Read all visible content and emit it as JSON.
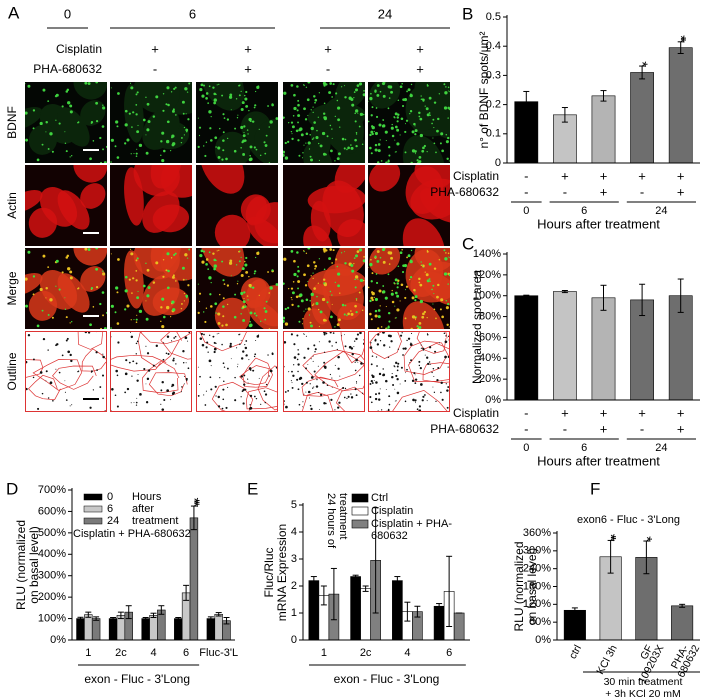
{
  "panel_a": {
    "letter": "A",
    "times": [
      "0",
      "6",
      "24"
    ],
    "conditions": [
      {
        "name": "Cisplatin",
        "signs": [
          "-",
          "+",
          "+",
          "+",
          "+"
        ]
      },
      {
        "name": "PHA-680632",
        "signs": [
          "-",
          "-",
          "+",
          "-",
          "+"
        ]
      }
    ],
    "rows": [
      "BDNF",
      "Actin",
      "Merge",
      "Outline"
    ]
  },
  "chart_data": [
    {
      "letter": "B",
      "type": "bar",
      "ylabel": [
        "n° of BDNF spots/µm²"
      ],
      "values": [
        0.21,
        0.165,
        0.23,
        0.31,
        0.395
      ],
      "errors": [
        0.035,
        0.025,
        0.018,
        0.022,
        0.02
      ],
      "colors": [
        "#000000",
        "#c4c4c4",
        "#b4b4b4",
        "#6e6e6e",
        "#6e6e6e"
      ],
      "stars": [
        null,
        null,
        null,
        "*",
        "**"
      ],
      "ylim": [
        0,
        0.5
      ],
      "yticks": [
        0,
        0.1,
        0.2,
        0.3,
        0.4,
        0.5
      ],
      "conditions": [
        {
          "name": "Cisplatin",
          "signs": [
            "-",
            "+",
            "+",
            "+",
            "+"
          ]
        },
        {
          "name": "PHA-680632",
          "signs": [
            "-",
            "-",
            "+",
            "-",
            "+"
          ]
        }
      ],
      "groups": [
        "0",
        "6",
        "24"
      ],
      "xlabel": "Hours after treatment"
    },
    {
      "letter": "C",
      "type": "bar",
      "ylabel": [
        "Normalized spot area"
      ],
      "values": [
        100,
        104,
        98,
        96,
        100
      ],
      "errors": [
        0.5,
        1,
        12,
        15,
        16
      ],
      "colors": [
        "#000000",
        "#c4c4c4",
        "#b4b4b4",
        "#6e6e6e",
        "#6e6e6e"
      ],
      "ylim": [
        0,
        140
      ],
      "yticks": [
        {
          "value": 0,
          "label": "0%"
        },
        {
          "value": 20,
          "label": "20%"
        },
        {
          "value": 40,
          "label": "40%"
        },
        {
          "value": 60,
          "label": "60%"
        },
        {
          "value": 80,
          "label": "80%"
        },
        {
          "value": 100,
          "label": "100%"
        },
        {
          "value": 120,
          "label": "120%"
        },
        {
          "value": 140,
          "label": "140%"
        }
      ],
      "conditions": [
        {
          "name": "Cisplatin",
          "signs": [
            "-",
            "+",
            "+",
            "+",
            "+"
          ]
        },
        {
          "name": "PHA-680632",
          "signs": [
            "-",
            "-",
            "+",
            "-",
            "+"
          ]
        }
      ],
      "groups": [
        "0",
        "6",
        "24"
      ],
      "xlabel": "Hours after treatment"
    },
    {
      "letter": "D",
      "type": "grouped_bar",
      "ylabel": [
        "RLU (normalized",
        "on basal level)"
      ],
      "categories": [
        "1",
        "2c",
        "4",
        "6",
        "Fluc-3'L"
      ],
      "series": [
        {
          "name": "0",
          "color": "#000000",
          "values": [
            100,
            100,
            100,
            100,
            100
          ],
          "errors": [
            6,
            5,
            5,
            5,
            8
          ]
        },
        {
          "name": "6",
          "color": "#c8c8c8",
          "values": [
            118,
            115,
            115,
            220,
            120
          ],
          "errors": [
            12,
            15,
            10,
            35,
            8
          ]
        },
        {
          "name": "24",
          "color": "#7a7a7a",
          "values": [
            100,
            130,
            140,
            570,
            90
          ],
          "errors": [
            8,
            30,
            20,
            55,
            15
          ],
          "stars": [
            null,
            null,
            null,
            "***",
            null
          ]
        }
      ],
      "legend_notes": [
        "Hours",
        "after",
        "treatment"
      ],
      "legend_caption": "Cisplatin + PHA-680632",
      "ylim": [
        0,
        700
      ],
      "yticks": [
        {
          "value": 0,
          "label": "0%"
        },
        {
          "value": 100,
          "label": "100%"
        },
        {
          "value": 200,
          "label": "200%"
        },
        {
          "value": 300,
          "label": "300%"
        },
        {
          "value": 400,
          "label": "400%"
        },
        {
          "value": 500,
          "label": "500%"
        },
        {
          "value": 600,
          "label": "600%"
        },
        {
          "value": 700,
          "label": "700%"
        }
      ],
      "xlabel": "exon - Fluc - 3'Long"
    },
    {
      "letter": "E",
      "type": "grouped_bar",
      "ylabel": [
        "Fluc/Rluc",
        "mRNA Expression"
      ],
      "categories": [
        "1",
        "2c",
        "4",
        "6"
      ],
      "series": [
        {
          "name": "Ctrl",
          "color": "#000000",
          "values": [
            2.2,
            2.35,
            2.2,
            1.25
          ],
          "errors": [
            0.15,
            0.05,
            0.15,
            0.1
          ]
        },
        {
          "name": "Cisplatin",
          "color": "#ffffff",
          "values": [
            1.65,
            1.9,
            1.05,
            1.8
          ],
          "errors": [
            0.35,
            0.1,
            0.35,
            1.3
          ]
        },
        {
          "name": "Cisplatin + PHA-680632",
          "color": "#808080",
          "values": [
            1.7,
            2.95,
            1.05,
            1.0
          ],
          "errors": [
            0.95,
            1.95,
            0.2,
            0
          ]
        }
      ],
      "note": [
        "24 hours of",
        "treatment"
      ],
      "ylim": [
        0,
        5
      ],
      "yticks": [
        0,
        1,
        2,
        3,
        4,
        5
      ],
      "xlabel": "exon - Fluc - 3'Long"
    },
    {
      "letter": "F",
      "type": "bar",
      "title": "exon6 - Fluc - 3'Long",
      "ylabel": [
        "RLU (normalized",
        "on basal level)"
      ],
      "categories": [
        [
          "ctrl"
        ],
        [
          "KCl 3h"
        ],
        [
          "GF",
          "109203X"
        ],
        [
          "PHA-",
          "680632"
        ]
      ],
      "values": [
        100,
        280,
        278,
        115
      ],
      "errors": [
        8,
        55,
        55,
        5
      ],
      "colors": [
        "#000000",
        "#c4c4c4",
        "#6e6e6e",
        "#6e6e6e"
      ],
      "stars": [
        null,
        "**",
        "*",
        null
      ],
      "ylim": [
        0,
        360
      ],
      "yticks": [
        {
          "value": 0,
          "label": "0%"
        },
        {
          "value": 60,
          "label": "60%"
        },
        {
          "value": 120,
          "label": "120%"
        },
        {
          "value": 180,
          "label": "180%"
        },
        {
          "value": 240,
          "label": "240%"
        },
        {
          "value": 300,
          "label": "300%"
        },
        {
          "value": 360,
          "label": "360%"
        }
      ],
      "footer": [
        "30 min treatment",
        "+ 3h KCl 20 mM"
      ]
    }
  ]
}
